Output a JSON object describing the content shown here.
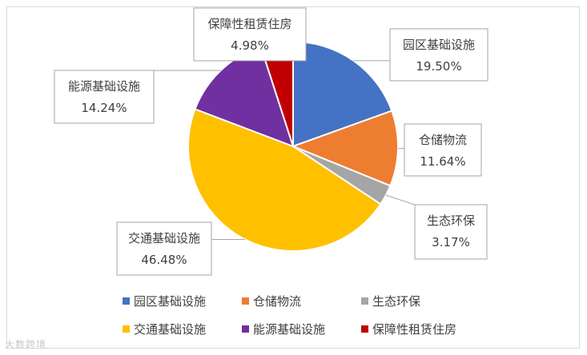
{
  "chart_data": {
    "type": "pie",
    "title": "",
    "categories": [
      "园区基础设施",
      "仓储物流",
      "生态环保",
      "交通基础设施",
      "能源基础设施",
      "保障性租赁住房"
    ],
    "values": [
      19.5,
      11.64,
      3.17,
      46.48,
      14.24,
      4.98
    ],
    "value_labels": [
      "19.50%",
      "11.64%",
      "3.17%",
      "46.48%",
      "14.24%",
      "4.98%"
    ],
    "unit": "%",
    "colors": [
      "#4472C4",
      "#ED7D31",
      "#A5A5A5",
      "#FFC000",
      "#7030A0",
      "#C00000"
    ],
    "legend_placement": "bottom"
  },
  "watermark": "大数跨境"
}
